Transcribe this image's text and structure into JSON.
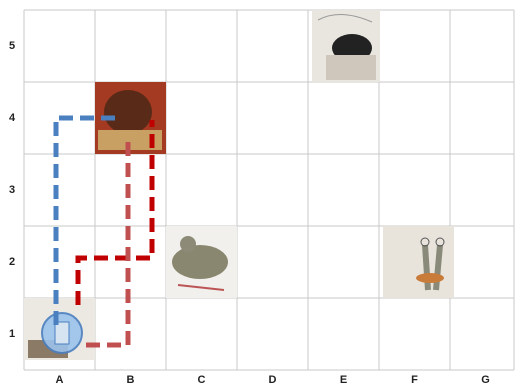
{
  "row_labels": [
    "5",
    "4",
    "3",
    "2",
    "1"
  ],
  "column_labels": [
    "A",
    "B",
    "C",
    "D",
    "E",
    "F",
    "G"
  ]
}
